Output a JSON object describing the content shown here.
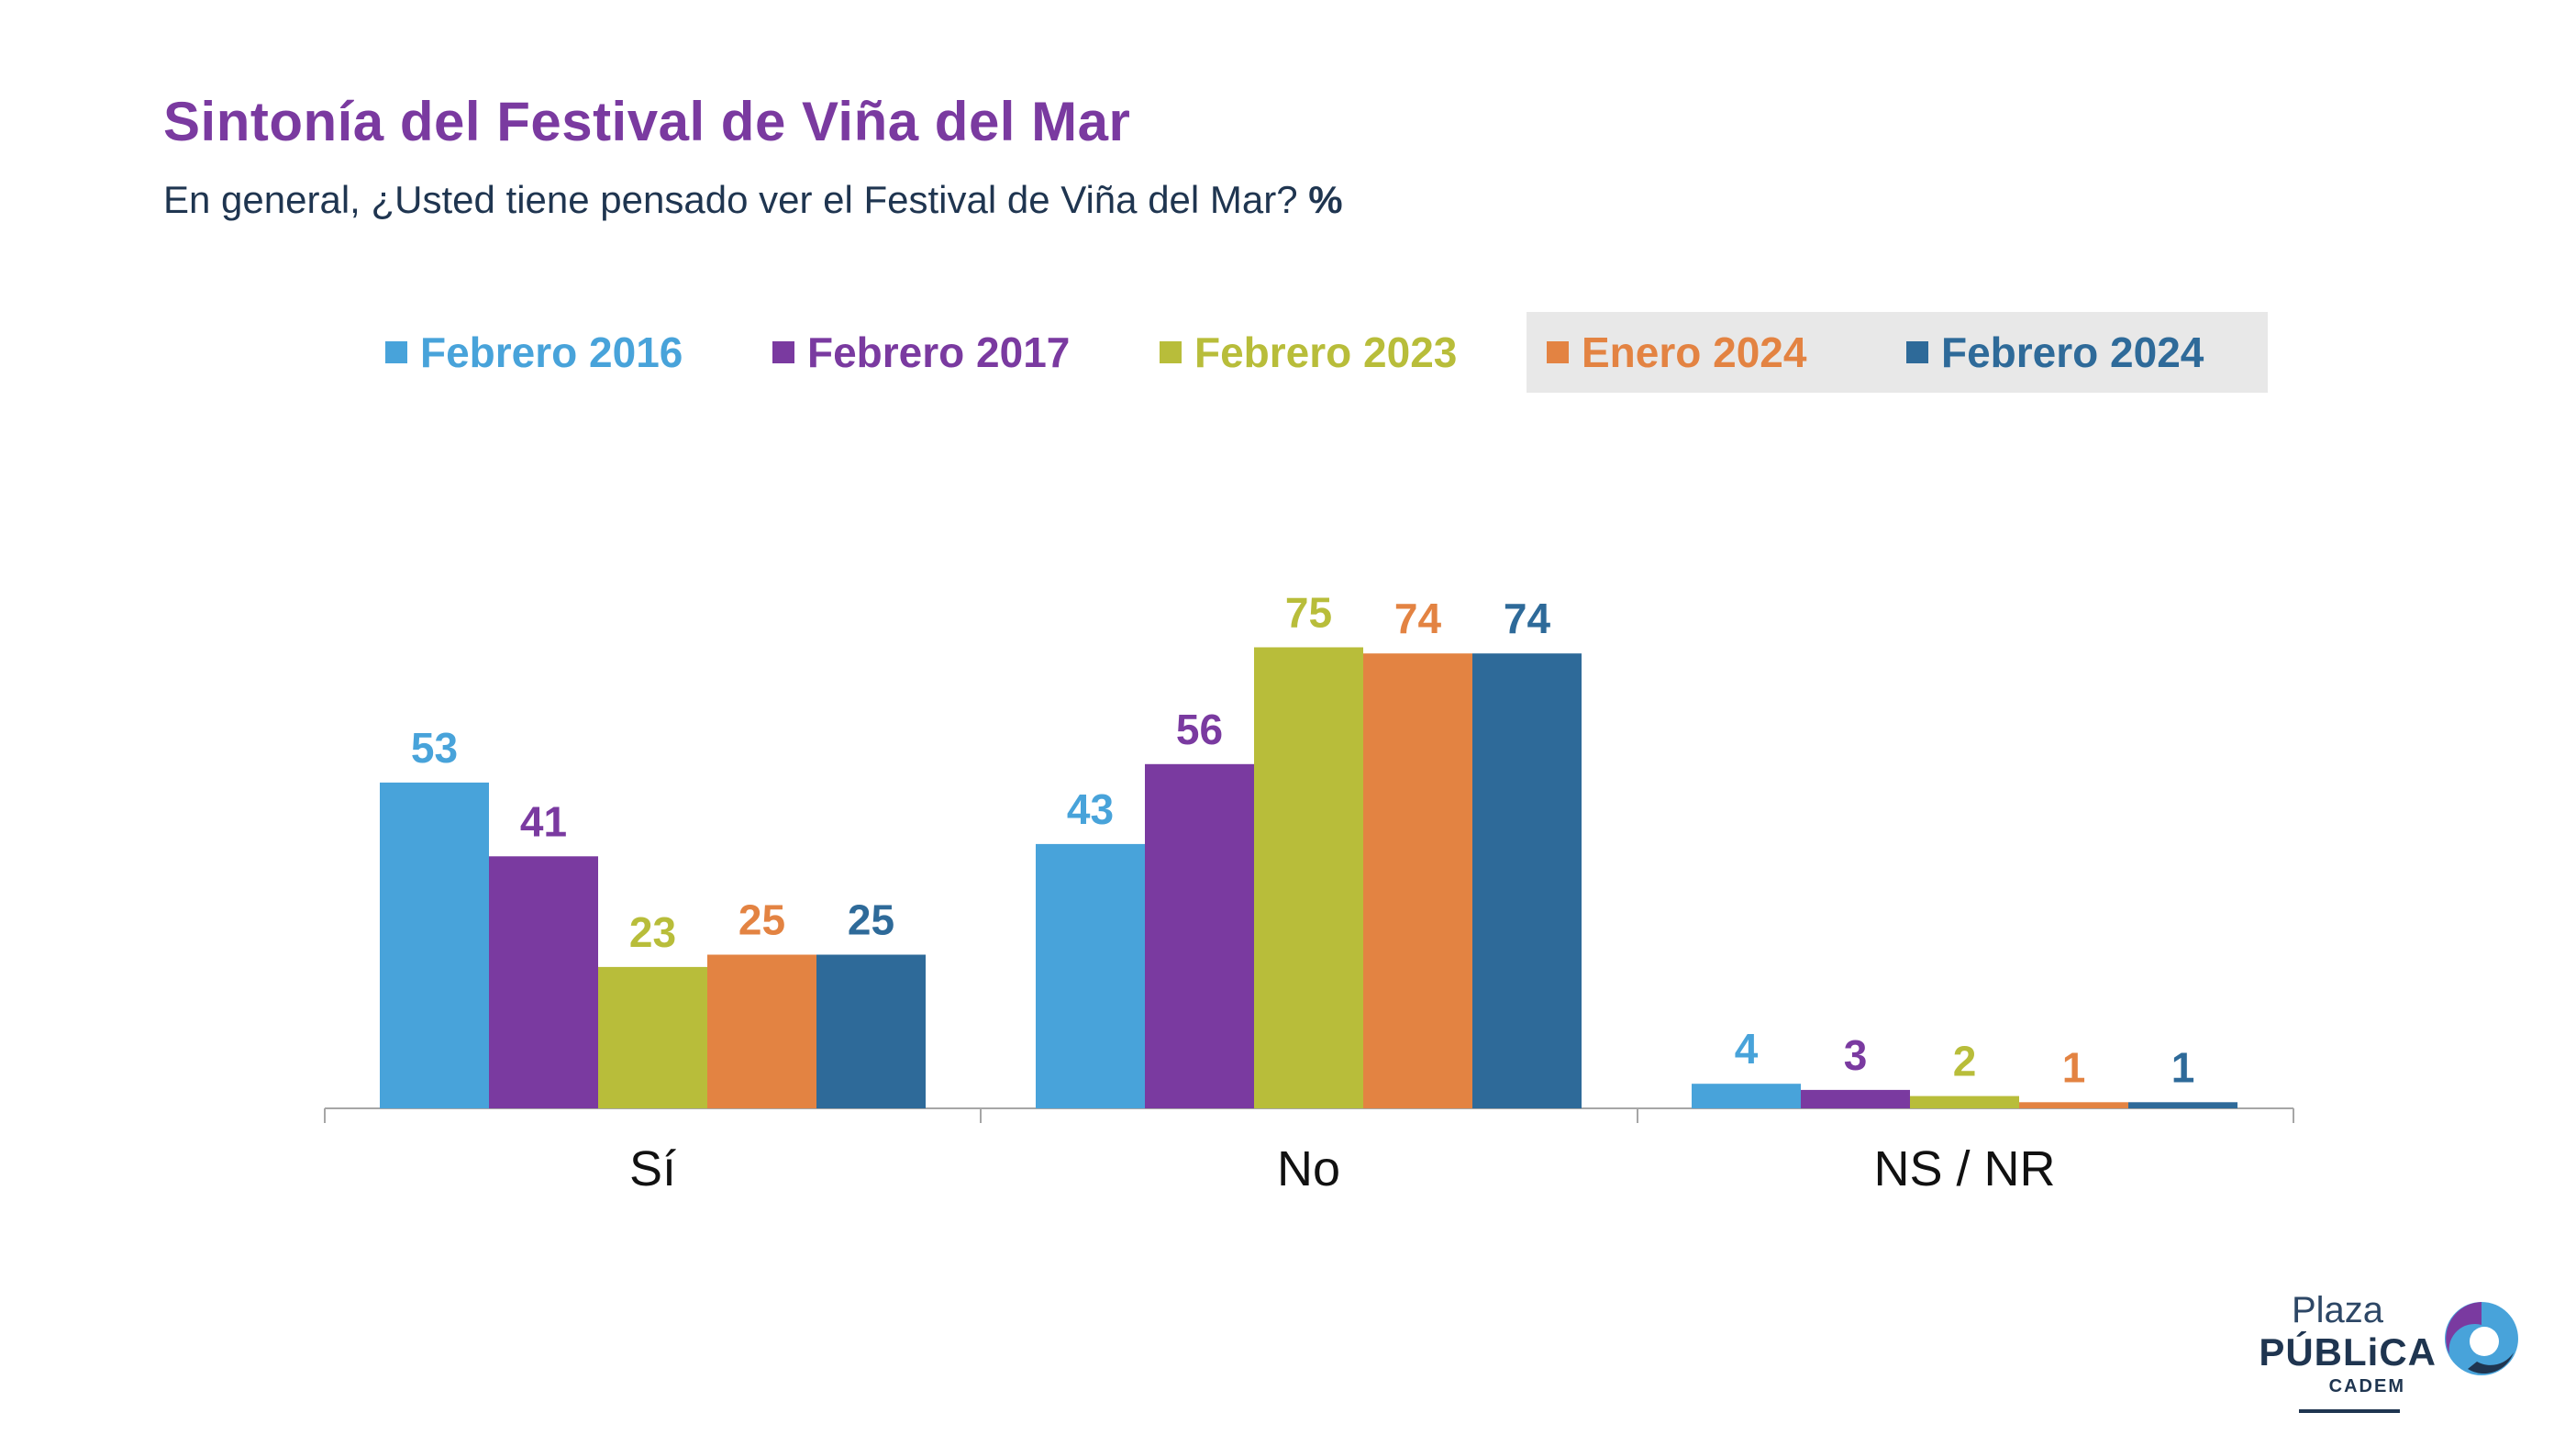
{
  "title": "Sintonía del Festival de Viña del Mar",
  "subtitle": "En general, ¿Usted tiene pensado ver el Festival de Viña del Mar?",
  "subtitle_unit": "%",
  "legend": [
    {
      "label": "Febrero 2016",
      "color": "#48a3da"
    },
    {
      "label": "Febrero 2017",
      "color": "#7a3aa0"
    },
    {
      "label": "Febrero 2023",
      "color": "#b8bd3a"
    },
    {
      "label": "Enero 2024",
      "color": "#e38342",
      "highlighted": true
    },
    {
      "label": "Febrero 2024",
      "color": "#2e6a99",
      "highlighted": true
    }
  ],
  "logo": {
    "line1": "Plaza",
    "line2": "PÚBLiCA",
    "line3": "CADEM"
  },
  "chart_data": {
    "type": "bar",
    "categories": [
      "Sí",
      "No",
      "NS / NR"
    ],
    "series": [
      {
        "name": "Febrero 2016",
        "values": [
          53,
          43,
          4
        ],
        "color": "#48a3da"
      },
      {
        "name": "Febrero 2017",
        "values": [
          41,
          56,
          3
        ],
        "color": "#7a3aa0"
      },
      {
        "name": "Febrero 2023",
        "values": [
          23,
          75,
          2
        ],
        "color": "#b8bd3a"
      },
      {
        "name": "Enero 2024",
        "values": [
          25,
          74,
          1
        ],
        "color": "#e38342"
      },
      {
        "name": "Febrero 2024",
        "values": [
          25,
          74,
          1
        ],
        "color": "#2e6a99"
      }
    ],
    "ylim": [
      0,
      75
    ],
    "grid": false,
    "legend_position": "top",
    "data_labels": true
  }
}
